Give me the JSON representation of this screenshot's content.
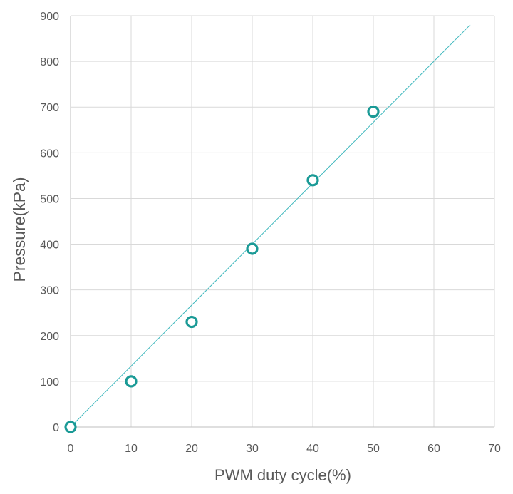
{
  "chart_data": {
    "type": "scatter",
    "xlabel": "PWM duty cycle(%)",
    "ylabel": "Pressure(kPa)",
    "xlim": [
      0,
      70
    ],
    "ylim": [
      0,
      900
    ],
    "xticks": [
      0,
      10,
      20,
      30,
      40,
      50,
      60,
      70
    ],
    "yticks": [
      0,
      100,
      200,
      300,
      400,
      500,
      600,
      700,
      800,
      900
    ],
    "grid": true,
    "legend": "none",
    "series": [
      {
        "type": "scatter",
        "marker": "hollow-circle",
        "color": "#1a9a96",
        "x": [
          0,
          10,
          20,
          30,
          40,
          50
        ],
        "y": [
          0,
          100,
          230,
          390,
          540,
          690
        ]
      },
      {
        "type": "line",
        "color": "#3fb8bd",
        "x": [
          0,
          66
        ],
        "y": [
          0,
          880
        ]
      }
    ]
  }
}
